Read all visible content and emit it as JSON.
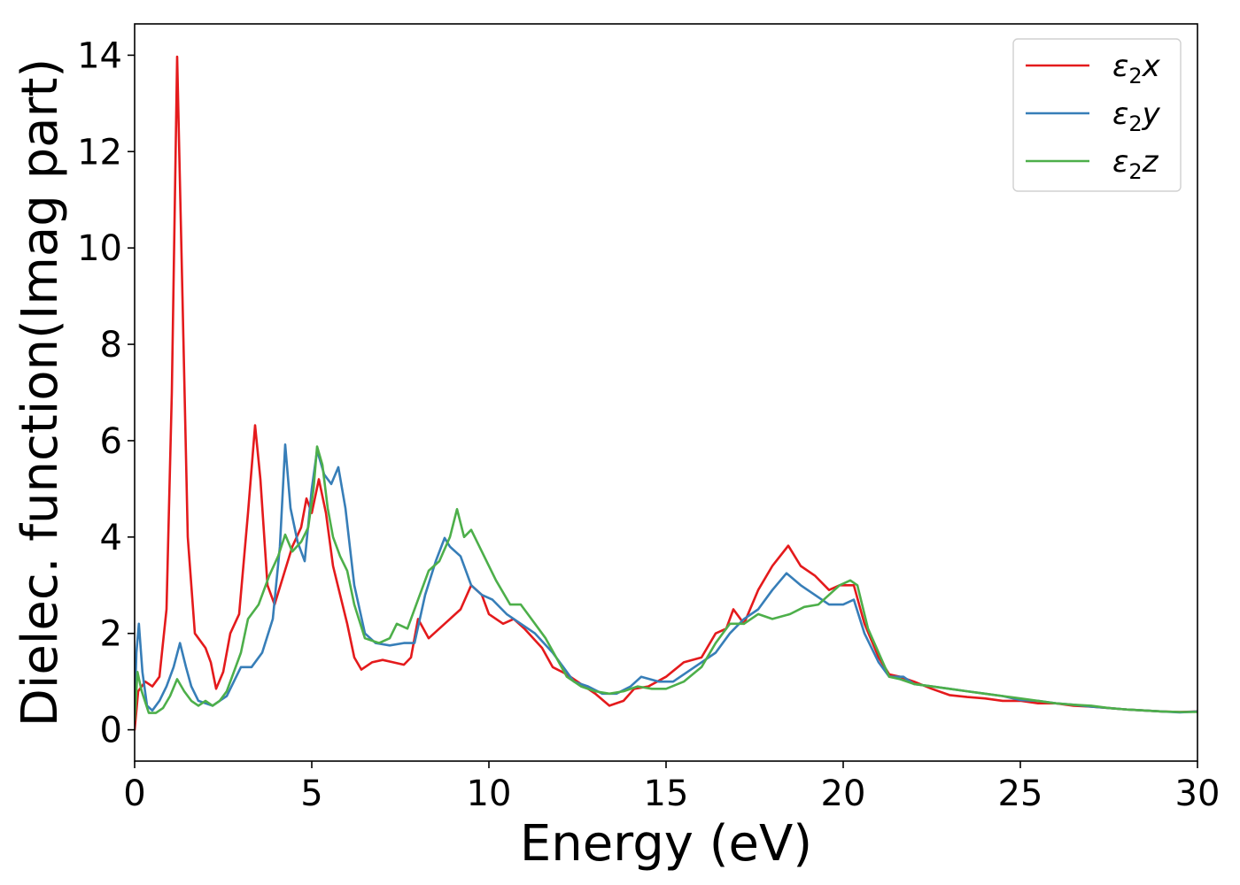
{
  "chart_data": {
    "type": "line",
    "title": "",
    "xlabel": "Energy (eV)",
    "ylabel": "Dielec. function(Imag part)",
    "xlim": [
      0,
      30
    ],
    "ylim": [
      -0.65,
      14.65
    ],
    "xticks": [
      0,
      5,
      10,
      15,
      20,
      25,
      30
    ],
    "yticks": [
      0,
      2,
      4,
      6,
      8,
      10,
      12,
      14
    ],
    "grid": false,
    "legend_position": "top-right",
    "series": [
      {
        "name_main": "ε",
        "name_sub": "2",
        "name_suffix": "x",
        "color": "#e41a1c",
        "points": [
          [
            0,
            0
          ],
          [
            0.1,
            0.8
          ],
          [
            0.3,
            1.0
          ],
          [
            0.5,
            0.9
          ],
          [
            0.7,
            1.1
          ],
          [
            0.9,
            2.5
          ],
          [
            1.05,
            7
          ],
          [
            1.2,
            13.97
          ],
          [
            1.35,
            9
          ],
          [
            1.5,
            4
          ],
          [
            1.7,
            2.0
          ],
          [
            2.0,
            1.7
          ],
          [
            2.15,
            1.4
          ],
          [
            2.3,
            0.85
          ],
          [
            2.5,
            1.2
          ],
          [
            2.7,
            2.0
          ],
          [
            2.95,
            2.4
          ],
          [
            3.2,
            4.5
          ],
          [
            3.4,
            6.32
          ],
          [
            3.55,
            5.2
          ],
          [
            3.75,
            3.0
          ],
          [
            3.95,
            2.6
          ],
          [
            4.2,
            3.2
          ],
          [
            4.45,
            3.8
          ],
          [
            4.7,
            4.2
          ],
          [
            4.85,
            4.8
          ],
          [
            5.0,
            4.5
          ],
          [
            5.2,
            5.2
          ],
          [
            5.4,
            4.5
          ],
          [
            5.6,
            3.4
          ],
          [
            5.8,
            2.8
          ],
          [
            6.0,
            2.2
          ],
          [
            6.2,
            1.5
          ],
          [
            6.4,
            1.25
          ],
          [
            6.7,
            1.4
          ],
          [
            7.0,
            1.45
          ],
          [
            7.3,
            1.4
          ],
          [
            7.6,
            1.35
          ],
          [
            7.8,
            1.5
          ],
          [
            8.0,
            2.3
          ],
          [
            8.3,
            1.9
          ],
          [
            8.6,
            2.1
          ],
          [
            8.9,
            2.3
          ],
          [
            9.2,
            2.5
          ],
          [
            9.5,
            3.0
          ],
          [
            9.8,
            2.8
          ],
          [
            10.0,
            2.4
          ],
          [
            10.4,
            2.2
          ],
          [
            10.7,
            2.3
          ],
          [
            11.0,
            2.1
          ],
          [
            11.5,
            1.7
          ],
          [
            11.8,
            1.3
          ],
          [
            12.2,
            1.15
          ],
          [
            12.6,
            0.95
          ],
          [
            13.0,
            0.75
          ],
          [
            13.4,
            0.5
          ],
          [
            13.8,
            0.6
          ],
          [
            14.1,
            0.85
          ],
          [
            14.5,
            0.9
          ],
          [
            15.0,
            1.1
          ],
          [
            15.5,
            1.4
          ],
          [
            16.0,
            1.5
          ],
          [
            16.4,
            2.0
          ],
          [
            16.7,
            2.1
          ],
          [
            16.9,
            2.5
          ],
          [
            17.2,
            2.2
          ],
          [
            17.6,
            2.9
          ],
          [
            18.0,
            3.4
          ],
          [
            18.45,
            3.82
          ],
          [
            18.8,
            3.4
          ],
          [
            19.2,
            3.2
          ],
          [
            19.6,
            2.9
          ],
          [
            19.9,
            3.0
          ],
          [
            20.3,
            3.0
          ],
          [
            20.6,
            2.2
          ],
          [
            21.0,
            1.5
          ],
          [
            21.3,
            1.15
          ],
          [
            21.6,
            1.1
          ],
          [
            22.0,
            1.0
          ],
          [
            22.5,
            0.85
          ],
          [
            23.0,
            0.72
          ],
          [
            23.5,
            0.68
          ],
          [
            24.0,
            0.65
          ],
          [
            24.5,
            0.6
          ],
          [
            25.0,
            0.6
          ],
          [
            25.5,
            0.55
          ],
          [
            26.0,
            0.55
          ],
          [
            26.5,
            0.5
          ],
          [
            27.0,
            0.48
          ],
          [
            27.5,
            0.45
          ],
          [
            28.0,
            0.42
          ],
          [
            28.5,
            0.4
          ],
          [
            29.0,
            0.38
          ],
          [
            29.5,
            0.37
          ],
          [
            30.0,
            0.38
          ]
        ]
      },
      {
        "name_main": "ε",
        "name_sub": "2",
        "name_suffix": "y",
        "color": "#377eb8",
        "points": [
          [
            0,
            0.4
          ],
          [
            0.05,
            1.6
          ],
          [
            0.12,
            2.2
          ],
          [
            0.22,
            1.2
          ],
          [
            0.35,
            0.5
          ],
          [
            0.5,
            0.4
          ],
          [
            0.7,
            0.6
          ],
          [
            0.9,
            0.9
          ],
          [
            1.1,
            1.3
          ],
          [
            1.28,
            1.8
          ],
          [
            1.45,
            1.3
          ],
          [
            1.6,
            0.9
          ],
          [
            1.8,
            0.6
          ],
          [
            2.0,
            0.55
          ],
          [
            2.2,
            0.5
          ],
          [
            2.4,
            0.6
          ],
          [
            2.6,
            0.7
          ],
          [
            2.8,
            1.0
          ],
          [
            3.0,
            1.3
          ],
          [
            3.3,
            1.3
          ],
          [
            3.6,
            1.6
          ],
          [
            3.9,
            2.3
          ],
          [
            4.1,
            3.8
          ],
          [
            4.25,
            5.92
          ],
          [
            4.4,
            4.6
          ],
          [
            4.6,
            3.9
          ],
          [
            4.8,
            3.5
          ],
          [
            5.0,
            5.0
          ],
          [
            5.15,
            5.8
          ],
          [
            5.35,
            5.3
          ],
          [
            5.55,
            5.1
          ],
          [
            5.75,
            5.45
          ],
          [
            5.95,
            4.6
          ],
          [
            6.2,
            3.0
          ],
          [
            6.5,
            2.0
          ],
          [
            6.8,
            1.8
          ],
          [
            7.2,
            1.75
          ],
          [
            7.6,
            1.8
          ],
          [
            7.9,
            1.8
          ],
          [
            8.2,
            2.8
          ],
          [
            8.5,
            3.5
          ],
          [
            8.75,
            3.98
          ],
          [
            8.9,
            3.8
          ],
          [
            9.2,
            3.6
          ],
          [
            9.5,
            3.0
          ],
          [
            9.8,
            2.8
          ],
          [
            10.1,
            2.7
          ],
          [
            10.5,
            2.4
          ],
          [
            10.9,
            2.2
          ],
          [
            11.3,
            2.0
          ],
          [
            11.8,
            1.6
          ],
          [
            12.1,
            1.3
          ],
          [
            12.4,
            1.0
          ],
          [
            12.8,
            0.9
          ],
          [
            13.2,
            0.75
          ],
          [
            13.6,
            0.75
          ],
          [
            14.0,
            0.9
          ],
          [
            14.3,
            1.1
          ],
          [
            14.8,
            1.0
          ],
          [
            15.2,
            1.0
          ],
          [
            15.6,
            1.2
          ],
          [
            16.0,
            1.4
          ],
          [
            16.4,
            1.6
          ],
          [
            16.8,
            2.0
          ],
          [
            17.2,
            2.3
          ],
          [
            17.6,
            2.5
          ],
          [
            18.0,
            2.9
          ],
          [
            18.4,
            3.25
          ],
          [
            18.8,
            3.0
          ],
          [
            19.2,
            2.8
          ],
          [
            19.6,
            2.6
          ],
          [
            20.0,
            2.6
          ],
          [
            20.3,
            2.7
          ],
          [
            20.6,
            2.0
          ],
          [
            21.0,
            1.4
          ],
          [
            21.3,
            1.1
          ],
          [
            21.7,
            1.1
          ],
          [
            22.0,
            0.95
          ],
          [
            22.5,
            0.9
          ],
          [
            23.0,
            0.85
          ],
          [
            23.5,
            0.8
          ],
          [
            24.0,
            0.75
          ],
          [
            24.5,
            0.7
          ],
          [
            25.0,
            0.62
          ],
          [
            25.5,
            0.6
          ],
          [
            26.0,
            0.55
          ],
          [
            26.5,
            0.52
          ],
          [
            27.0,
            0.48
          ],
          [
            27.5,
            0.45
          ],
          [
            28.0,
            0.42
          ],
          [
            28.5,
            0.4
          ],
          [
            29.0,
            0.38
          ],
          [
            29.5,
            0.36
          ],
          [
            30.0,
            0.38
          ]
        ]
      },
      {
        "name_main": "ε",
        "name_sub": "2",
        "name_suffix": "z",
        "color": "#4daf4a",
        "points": [
          [
            0,
            0.2
          ],
          [
            0.08,
            1.2
          ],
          [
            0.2,
            0.8
          ],
          [
            0.4,
            0.35
          ],
          [
            0.6,
            0.35
          ],
          [
            0.8,
            0.45
          ],
          [
            1.0,
            0.7
          ],
          [
            1.2,
            1.05
          ],
          [
            1.4,
            0.8
          ],
          [
            1.6,
            0.6
          ],
          [
            1.8,
            0.5
          ],
          [
            2.0,
            0.6
          ],
          [
            2.2,
            0.5
          ],
          [
            2.4,
            0.6
          ],
          [
            2.6,
            0.8
          ],
          [
            2.8,
            1.2
          ],
          [
            3.0,
            1.6
          ],
          [
            3.2,
            2.3
          ],
          [
            3.5,
            2.6
          ],
          [
            3.8,
            3.2
          ],
          [
            4.05,
            3.6
          ],
          [
            4.25,
            4.05
          ],
          [
            4.45,
            3.7
          ],
          [
            4.7,
            3.9
          ],
          [
            4.9,
            4.2
          ],
          [
            5.05,
            5.0
          ],
          [
            5.15,
            5.88
          ],
          [
            5.3,
            5.5
          ],
          [
            5.45,
            4.6
          ],
          [
            5.6,
            4.0
          ],
          [
            5.8,
            3.6
          ],
          [
            6.0,
            3.3
          ],
          [
            6.2,
            2.6
          ],
          [
            6.5,
            1.9
          ],
          [
            6.9,
            1.8
          ],
          [
            7.2,
            1.9
          ],
          [
            7.4,
            2.2
          ],
          [
            7.7,
            2.1
          ],
          [
            8.0,
            2.7
          ],
          [
            8.3,
            3.3
          ],
          [
            8.6,
            3.5
          ],
          [
            8.9,
            4.0
          ],
          [
            9.1,
            4.58
          ],
          [
            9.3,
            4.0
          ],
          [
            9.5,
            4.15
          ],
          [
            9.8,
            3.7
          ],
          [
            10.2,
            3.1
          ],
          [
            10.6,
            2.6
          ],
          [
            10.9,
            2.6
          ],
          [
            11.2,
            2.3
          ],
          [
            11.6,
            1.9
          ],
          [
            11.9,
            1.5
          ],
          [
            12.2,
            1.1
          ],
          [
            12.6,
            0.9
          ],
          [
            13.0,
            0.8
          ],
          [
            13.4,
            0.75
          ],
          [
            13.8,
            0.8
          ],
          [
            14.2,
            0.9
          ],
          [
            14.6,
            0.85
          ],
          [
            15.0,
            0.85
          ],
          [
            15.5,
            1.0
          ],
          [
            16.0,
            1.3
          ],
          [
            16.4,
            1.8
          ],
          [
            16.8,
            2.2
          ],
          [
            17.2,
            2.2
          ],
          [
            17.6,
            2.4
          ],
          [
            18.0,
            2.3
          ],
          [
            18.5,
            2.4
          ],
          [
            18.9,
            2.55
          ],
          [
            19.3,
            2.6
          ],
          [
            19.6,
            2.8
          ],
          [
            19.9,
            3.0
          ],
          [
            20.2,
            3.1
          ],
          [
            20.4,
            3.0
          ],
          [
            20.7,
            2.1
          ],
          [
            21.0,
            1.6
          ],
          [
            21.3,
            1.1
          ],
          [
            21.6,
            1.05
          ],
          [
            22.0,
            0.95
          ],
          [
            22.5,
            0.9
          ],
          [
            23.0,
            0.85
          ],
          [
            23.5,
            0.8
          ],
          [
            24.0,
            0.75
          ],
          [
            24.5,
            0.7
          ],
          [
            25.0,
            0.65
          ],
          [
            25.5,
            0.6
          ],
          [
            26.0,
            0.55
          ],
          [
            26.5,
            0.52
          ],
          [
            27.0,
            0.5
          ],
          [
            27.5,
            0.45
          ],
          [
            28.0,
            0.42
          ],
          [
            28.5,
            0.4
          ],
          [
            29.0,
            0.38
          ],
          [
            29.5,
            0.37
          ],
          [
            30.0,
            0.37
          ]
        ]
      }
    ]
  }
}
